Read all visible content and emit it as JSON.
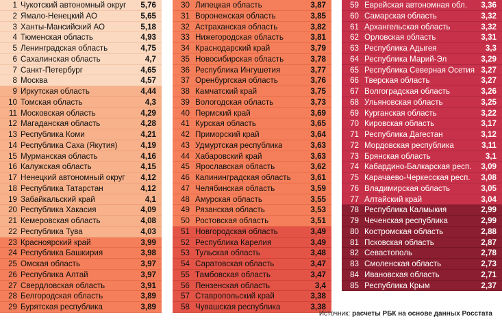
{
  "colors": {
    "band1": "#fbd9c0",
    "band2": "#f7b28c",
    "band3": "#f47f5a",
    "band4": "#e35447",
    "band5": "#c8314a",
    "band6": "#8b1e30"
  },
  "rows": [
    {
      "n": "1",
      "name": "Чукотский автономный округ",
      "v": "5,76",
      "band": 1
    },
    {
      "n": "2",
      "name": "Ямало-Ненецкий АО",
      "v": "5,65",
      "band": 1
    },
    {
      "n": "3",
      "name": "Ханты-Мансийский АО",
      "v": "5,18",
      "band": 1
    },
    {
      "n": "4",
      "name": "Тюменская область",
      "v": "4,93",
      "band": 1
    },
    {
      "n": "5",
      "name": "Ленинградская область",
      "v": "4,75",
      "band": 1
    },
    {
      "n": "6",
      "name": "Сахалинская область",
      "v": "4,7",
      "band": 1
    },
    {
      "n": "7",
      "name": "Санкт-Петербург",
      "v": "4,65",
      "band": 1
    },
    {
      "n": "8",
      "name": "Москва",
      "v": "4,57",
      "band": 1
    },
    {
      "n": "9",
      "name": "Иркутская область",
      "v": "4,44",
      "band": 2
    },
    {
      "n": "10",
      "name": "Томская область",
      "v": "4,3",
      "band": 2
    },
    {
      "n": "11",
      "name": "Московская область",
      "v": "4,29",
      "band": 2
    },
    {
      "n": "12",
      "name": "Магаданская область",
      "v": "4,28",
      "band": 2
    },
    {
      "n": "13",
      "name": "Республика Коми",
      "v": "4,21",
      "band": 2
    },
    {
      "n": "14",
      "name": "Республика Саха (Якутия)",
      "v": "4,19",
      "band": 2
    },
    {
      "n": "15",
      "name": "Мурманская область",
      "v": "4,16",
      "band": 2
    },
    {
      "n": "16",
      "name": "Калужская область",
      "v": "4,15",
      "band": 2
    },
    {
      "n": "17",
      "name": "Ненецкий автономный округ",
      "v": "4,12",
      "band": 2
    },
    {
      "n": "18",
      "name": "Республика Татарстан",
      "v": "4,12",
      "band": 2
    },
    {
      "n": "19",
      "name": "Забайкальский край",
      "v": "4,1",
      "band": 2
    },
    {
      "n": "20",
      "name": "Республика Хакасия",
      "v": "4,09",
      "band": 2
    },
    {
      "n": "21",
      "name": "Кемеровская область",
      "v": "4,08",
      "band": 2
    },
    {
      "n": "22",
      "name": "Республика Тува",
      "v": "4,03",
      "band": 2
    },
    {
      "n": "23",
      "name": "Красноярский край",
      "v": "3,99",
      "band": 3
    },
    {
      "n": "24",
      "name": "Республика Башкирия",
      "v": "3,98",
      "band": 3
    },
    {
      "n": "25",
      "name": "Омская область",
      "v": "3,97",
      "band": 3
    },
    {
      "n": "26",
      "name": "Республика Алтай",
      "v": "3,97",
      "band": 3
    },
    {
      "n": "27",
      "name": "Свердловская область",
      "v": "3,91",
      "band": 3
    },
    {
      "n": "28",
      "name": "Белгородская область",
      "v": "3,89",
      "band": 3
    },
    {
      "n": "29",
      "name": "Бурятская республика",
      "v": "3,89",
      "band": 3
    },
    {
      "n": "30",
      "name": "Липецкая область",
      "v": "3,87",
      "band": 3
    },
    {
      "n": "31",
      "name": "Воронежская область",
      "v": "3,85",
      "band": 3
    },
    {
      "n": "32",
      "name": "Астраханская область",
      "v": "3,82",
      "band": 3
    },
    {
      "n": "33",
      "name": "Нижегородская область",
      "v": "3,81",
      "band": 3
    },
    {
      "n": "34",
      "name": "Краснодарский край",
      "v": "3,79",
      "band": 3
    },
    {
      "n": "35",
      "name": "Новосибирская область",
      "v": "3,78",
      "band": 3
    },
    {
      "n": "36",
      "name": "Республика Ингушетия",
      "v": "3,77",
      "band": 3
    },
    {
      "n": "37",
      "name": "Оренбургская область",
      "v": "3,76",
      "band": 3
    },
    {
      "n": "38",
      "name": "Камчатский край",
      "v": "3,75",
      "band": 3
    },
    {
      "n": "39",
      "name": "Вологодская область",
      "v": "3,73",
      "band": 3
    },
    {
      "n": "40",
      "name": "Пермский край",
      "v": "3,69",
      "band": 3
    },
    {
      "n": "41",
      "name": "Курская область",
      "v": "3,65",
      "band": 3
    },
    {
      "n": "42",
      "name": "Приморский край",
      "v": "3,64",
      "band": 3
    },
    {
      "n": "43",
      "name": "Удмуртская республика",
      "v": "3,63",
      "band": 3
    },
    {
      "n": "44",
      "name": "Хабаровский край",
      "v": "3,63",
      "band": 3
    },
    {
      "n": "45",
      "name": "Ярославская область",
      "v": "3,62",
      "band": 3
    },
    {
      "n": "46",
      "name": "Калининградская область",
      "v": "3,61",
      "band": 3
    },
    {
      "n": "47",
      "name": "Челябинская область",
      "v": "3,59",
      "band": 3
    },
    {
      "n": "48",
      "name": "Амурская область",
      "v": "3,55",
      "band": 3
    },
    {
      "n": "49",
      "name": "Рязанская область",
      "v": "3,53",
      "band": 3
    },
    {
      "n": "50",
      "name": "Ростовская область",
      "v": "3,51",
      "band": 3
    },
    {
      "n": "51",
      "name": "Новгородская область",
      "v": "3,49",
      "band": 4
    },
    {
      "n": "52",
      "name": "Республика Карелия",
      "v": "3,49",
      "band": 4
    },
    {
      "n": "53",
      "name": "Тульская область",
      "v": "3,48",
      "band": 4
    },
    {
      "n": "54",
      "name": "Саратовская область",
      "v": "3,47",
      "band": 4
    },
    {
      "n": "55",
      "name": "Тамбовская область",
      "v": "3,47",
      "band": 4
    },
    {
      "n": "56",
      "name": "Пензенская область",
      "v": "3,4",
      "band": 4
    },
    {
      "n": "57",
      "name": "Ставропольский край",
      "v": "3,38",
      "band": 4
    },
    {
      "n": "58",
      "name": "Чувашская республика",
      "v": "3,38",
      "band": 4
    },
    {
      "n": "59",
      "name": "Еврейская автономная обл.",
      "v": "3,36",
      "band": 5
    },
    {
      "n": "60",
      "name": "Самарская область",
      "v": "3,32",
      "band": 5
    },
    {
      "n": "61",
      "name": "Архангельская область",
      "v": "3,32",
      "band": 5
    },
    {
      "n": "62",
      "name": "Орловская область",
      "v": "3,31",
      "band": 5
    },
    {
      "n": "63",
      "name": "Республика Адыгея",
      "v": "3,3",
      "band": 5
    },
    {
      "n": "64",
      "name": "Республика Марий-Эл",
      "v": "3,29",
      "band": 5
    },
    {
      "n": "65",
      "name": "Республика Северная Осетия",
      "v": "3,27",
      "band": 5
    },
    {
      "n": "66",
      "name": "Тверская область",
      "v": "3,27",
      "band": 5
    },
    {
      "n": "67",
      "name": "Волгоградская область",
      "v": "3,26",
      "band": 5
    },
    {
      "n": "68",
      "name": "Ульяновская область",
      "v": "3,25",
      "band": 5
    },
    {
      "n": "69",
      "name": "Курганская область",
      "v": "3,22",
      "band": 5
    },
    {
      "n": "70",
      "name": "Кировская область",
      "v": "3,17",
      "band": 5
    },
    {
      "n": "71",
      "name": "Республика Дагестан",
      "v": "3,12",
      "band": 5
    },
    {
      "n": "72",
      "name": "Мордовская республика",
      "v": "3,11",
      "band": 5
    },
    {
      "n": "73",
      "name": "Брянская область",
      "v": "3,1",
      "band": 5
    },
    {
      "n": "74",
      "name": "Кабардино-Балкарская респ.",
      "v": "3,09",
      "band": 5
    },
    {
      "n": "75",
      "name": "Карачаево-Черкесская респ.",
      "v": "3,08",
      "band": 5
    },
    {
      "n": "76",
      "name": "Владимирская область",
      "v": "3,05",
      "band": 5
    },
    {
      "n": "77",
      "name": "Алтайский край",
      "v": "3,04",
      "band": 5
    },
    {
      "n": "78",
      "name": "Республика Калмыкия",
      "v": "2,99",
      "band": 6
    },
    {
      "n": "79",
      "name": "Чеченская республика",
      "v": "2,99",
      "band": 6
    },
    {
      "n": "80",
      "name": "Костромская область",
      "v": "2,88",
      "band": 6
    },
    {
      "n": "81",
      "name": "Псковская область",
      "v": "2,87",
      "band": 6
    },
    {
      "n": "82",
      "name": "Севастополь",
      "v": "2,78",
      "band": 6
    },
    {
      "n": "83",
      "name": "Смоленская область",
      "v": "2,73",
      "band": 6
    },
    {
      "n": "84",
      "name": "Ивановская область",
      "v": "2,71",
      "band": 6
    },
    {
      "n": "85",
      "name": "Республика Крым",
      "v": "2,37",
      "band": 6
    }
  ],
  "source": {
    "prefix": "Источник:",
    "text": "расчеты РБК на основе данных Росстата"
  }
}
